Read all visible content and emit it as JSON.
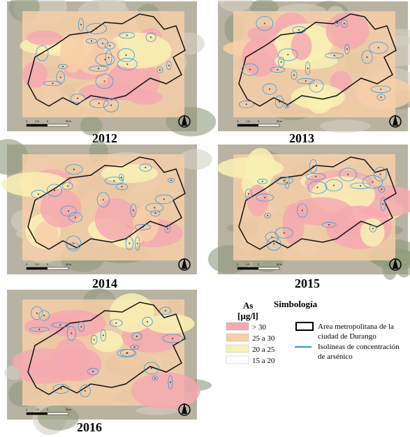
{
  "panels": [
    {
      "year": "2012",
      "scale": [
        "3",
        "1.5",
        "0",
        "3Km"
      ]
    },
    {
      "year": "2013",
      "scale": [
        "3",
        "1.5",
        "0",
        "3Km"
      ]
    },
    {
      "year": "2014",
      "scale": [
        "3",
        "1.5",
        "0",
        "3Km"
      ]
    },
    {
      "year": "2015",
      "scale": [
        "3",
        "1.5",
        "0",
        "3Km"
      ]
    },
    {
      "year": "2016",
      "scale": [
        "3",
        "1.5",
        "0",
        "3Km"
      ]
    }
  ],
  "legend": {
    "variable": "As",
    "unit": "[µg/l]",
    "title": "Simbología",
    "classes": [
      {
        "label": "> 30",
        "color": "#f4a9b0"
      },
      {
        "label": "25 a 30",
        "color": "#f7cfa8"
      },
      {
        "label": "20 a 25",
        "color": "#f8f1b4"
      },
      {
        "label": "15 a 20",
        "color": "#ffffff"
      }
    ],
    "items": [
      {
        "lines": [
          "Area metropolitana de la",
          "ciudad de Durango"
        ]
      },
      {
        "lines": [
          "Isolíneas de concentración",
          "de arsénico"
        ]
      }
    ]
  }
}
